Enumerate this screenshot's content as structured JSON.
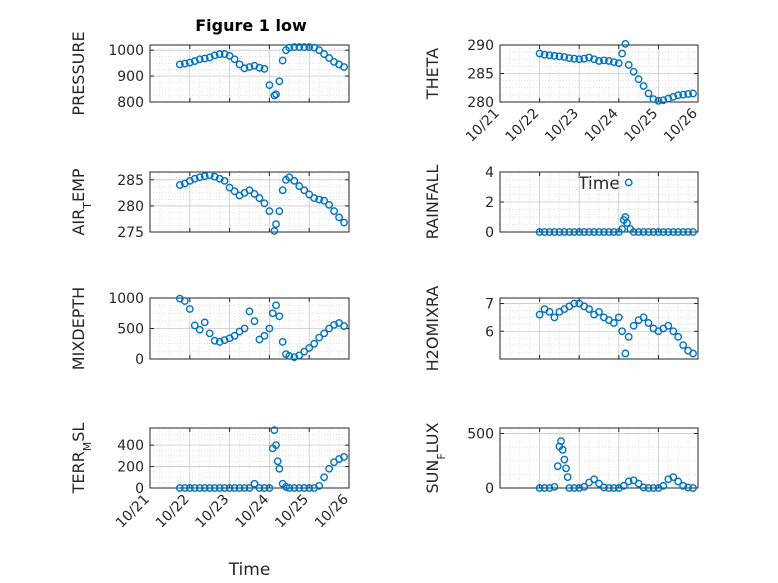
{
  "title": "Figure 1 low",
  "colors": {
    "marker": "#0072BD",
    "axis": "#262626",
    "grid": "#c8c8c8",
    "gridMinor": "#d8d8d8"
  },
  "chart_data": [
    {
      "type": "scatter",
      "ylabel": "PRESSURE",
      "ylim": [
        800,
        1020
      ],
      "yticks": [
        800,
        900,
        1000
      ],
      "ytick_labels": [
        "800",
        "900",
        "1000"
      ],
      "xlim": [
        "10/21",
        "10/26"
      ],
      "xticks": [
        "10/21",
        "10/22",
        "10/23",
        "10/24",
        "10/25",
        "10/26"
      ],
      "grid": "on",
      "x": [
        "10/21 18:00",
        "10/21 21:00",
        "10/22 00:00",
        "10/22 03:00",
        "10/22 06:00",
        "10/22 09:00",
        "10/22 12:00",
        "10/22 15:00",
        "10/22 18:00",
        "10/22 21:00",
        "10/23 00:00",
        "10/23 03:00",
        "10/23 06:00",
        "10/23 09:00",
        "10/23 12:00",
        "10/23 15:00",
        "10/23 18:00",
        "10/23 21:00",
        "10/24 00:00",
        "10/24 03:00",
        "10/24 04:00",
        "10/24 06:00",
        "10/24 08:00",
        "10/24 10:00",
        "10/24 12:00",
        "10/24 15:00",
        "10/24 18:00",
        "10/24 21:00",
        "10/25 00:00",
        "10/25 03:00",
        "10/25 06:00",
        "10/25 09:00",
        "10/25 12:00",
        "10/25 15:00",
        "10/25 18:00",
        "10/25 21:00"
      ],
      "y": [
        945,
        948,
        952,
        958,
        965,
        968,
        972,
        980,
        985,
        985,
        978,
        965,
        945,
        930,
        935,
        940,
        932,
        928,
        865,
        825,
        830,
        880,
        960,
        1000,
        1010,
        1012,
        1012,
        1012,
        1012,
        1010,
        1000,
        985,
        970,
        955,
        945,
        935
      ]
    },
    {
      "type": "scatter",
      "ylabel": "THETA",
      "ylim": [
        280,
        290
      ],
      "yticks": [
        280,
        285,
        290
      ],
      "ytick_labels": [
        "280",
        "285",
        "290"
      ],
      "xlim": [
        "10/21",
        "10/26"
      ],
      "xticks": [
        "10/21",
        "10/22",
        "10/23",
        "10/24",
        "10/25",
        "10/26"
      ],
      "xtick_labels": [
        "10/21",
        "10/22",
        "10/23",
        "10/24",
        "10/25",
        "10/26"
      ],
      "xlabel": "Time",
      "grid": "on",
      "x": [
        "10/22 00:00",
        "10/22 03:00",
        "10/22 06:00",
        "10/22 09:00",
        "10/22 12:00",
        "10/22 15:00",
        "10/22 18:00",
        "10/22 21:00",
        "10/23 00:00",
        "10/23 03:00",
        "10/23 06:00",
        "10/23 09:00",
        "10/23 12:00",
        "10/23 15:00",
        "10/23 18:00",
        "10/23 21:00",
        "10/24 00:00",
        "10/24 02:00",
        "10/24 04:00",
        "10/24 06:00",
        "10/24 09:00",
        "10/24 12:00",
        "10/24 15:00",
        "10/24 18:00",
        "10/24 21:00",
        "10/25 00:00",
        "10/25 03:00",
        "10/25 06:00",
        "10/25 09:00",
        "10/25 12:00",
        "10/25 15:00",
        "10/25 18:00",
        "10/25 21:00"
      ],
      "y": [
        288.5,
        288.3,
        288.2,
        288.1,
        288.0,
        287.9,
        287.7,
        287.6,
        287.5,
        287.6,
        287.8,
        287.5,
        287.2,
        287.3,
        287.2,
        287.0,
        286.8,
        288.5,
        290.2,
        286.5,
        285.3,
        284.0,
        282.8,
        281.5,
        280.5,
        280.2,
        280.3,
        280.6,
        280.9,
        281.2,
        281.3,
        281.4,
        281.5
      ]
    },
    {
      "type": "scatter",
      "ylabel": "AIR_TEMP",
      "ylabel_base": "AIR",
      "ylabel_sub": "T",
      "ylabel_rest": "EMP",
      "ylim": [
        275,
        286.5
      ],
      "yticks": [
        275,
        280,
        285
      ],
      "ytick_labels": [
        "275",
        "280",
        "285"
      ],
      "xlim": [
        "10/21",
        "10/26"
      ],
      "xticks": [
        "10/21",
        "10/22",
        "10/23",
        "10/24",
        "10/25",
        "10/26"
      ],
      "grid": "on",
      "x": [
        "10/21 18:00",
        "10/21 21:00",
        "10/22 00:00",
        "10/22 03:00",
        "10/22 06:00",
        "10/22 09:00",
        "10/22 12:00",
        "10/22 15:00",
        "10/22 18:00",
        "10/22 21:00",
        "10/23 00:00",
        "10/23 03:00",
        "10/23 06:00",
        "10/23 09:00",
        "10/23 12:00",
        "10/23 15:00",
        "10/23 18:00",
        "10/23 21:00",
        "10/24 00:00",
        "10/24 03:00",
        "10/24 04:00",
        "10/24 06:00",
        "10/24 08:00",
        "10/24 10:00",
        "10/24 12:00",
        "10/24 15:00",
        "10/24 18:00",
        "10/24 21:00",
        "10/25 00:00",
        "10/25 03:00",
        "10/25 06:00",
        "10/25 09:00",
        "10/25 12:00",
        "10/25 15:00",
        "10/25 18:00",
        "10/25 21:00"
      ],
      "y": [
        284.0,
        284.3,
        284.8,
        285.2,
        285.5,
        285.7,
        285.9,
        285.6,
        285.2,
        284.8,
        283.5,
        282.8,
        282.0,
        282.5,
        283.0,
        282.3,
        281.5,
        280.5,
        279.0,
        275.2,
        276.5,
        279.0,
        283.0,
        285.0,
        285.5,
        284.8,
        283.8,
        283.0,
        282.2,
        281.5,
        281.2,
        281.0,
        280.2,
        279.0,
        277.8,
        276.8
      ]
    },
    {
      "type": "scatter",
      "ylabel": "RAINFALL",
      "ylim": [
        0,
        4
      ],
      "yticks": [
        0,
        2,
        4
      ],
      "ytick_labels": [
        "0",
        "2",
        "4"
      ],
      "xlim": [
        "10/21",
        "10/26"
      ],
      "xticks": [
        "10/21",
        "10/22",
        "10/23",
        "10/24",
        "10/25",
        "10/26"
      ],
      "grid": "on",
      "x": [
        "10/22 00:00",
        "10/22 03:00",
        "10/22 06:00",
        "10/22 09:00",
        "10/22 12:00",
        "10/22 15:00",
        "10/22 18:00",
        "10/22 21:00",
        "10/23 00:00",
        "10/23 03:00",
        "10/23 06:00",
        "10/23 09:00",
        "10/23 12:00",
        "10/23 15:00",
        "10/23 18:00",
        "10/23 21:00",
        "10/24 00:00",
        "10/24 02:00",
        "10/24 03:00",
        "10/24 04:00",
        "10/24 05:00",
        "10/24 06:00",
        "10/24 07:00",
        "10/24 09:00",
        "10/24 12:00",
        "10/24 15:00",
        "10/24 18:00",
        "10/24 21:00",
        "10/25 00:00",
        "10/25 03:00",
        "10/25 06:00",
        "10/25 09:00",
        "10/25 12:00",
        "10/25 15:00",
        "10/25 18:00",
        "10/25 21:00"
      ],
      "y": [
        0,
        0,
        0,
        0,
        0,
        0,
        0,
        0,
        0,
        0,
        0,
        0,
        0,
        0,
        0,
        0,
        0,
        0.2,
        0.8,
        1.0,
        0.6,
        3.3,
        0.2,
        0,
        0,
        0,
        0,
        0,
        0,
        0,
        0,
        0,
        0,
        0,
        0,
        0
      ]
    },
    {
      "type": "scatter",
      "ylabel": "MIXDEPTH",
      "ylim": [
        0,
        1000
      ],
      "yticks": [
        0,
        500,
        1000
      ],
      "ytick_labels": [
        "0",
        "500",
        "1000"
      ],
      "xlim": [
        "10/21",
        "10/26"
      ],
      "xticks": [
        "10/21",
        "10/22",
        "10/23",
        "10/24",
        "10/25",
        "10/26"
      ],
      "grid": "on",
      "x": [
        "10/21 18:00",
        "10/21 21:00",
        "10/22 00:00",
        "10/22 03:00",
        "10/22 06:00",
        "10/22 09:00",
        "10/22 12:00",
        "10/22 15:00",
        "10/22 18:00",
        "10/22 21:00",
        "10/23 00:00",
        "10/23 03:00",
        "10/23 06:00",
        "10/23 09:00",
        "10/23 12:00",
        "10/23 15:00",
        "10/23 18:00",
        "10/23 21:00",
        "10/24 00:00",
        "10/24 02:00",
        "10/24 04:00",
        "10/24 06:00",
        "10/24 08:00",
        "10/24 10:00",
        "10/24 12:00",
        "10/24 15:00",
        "10/24 18:00",
        "10/24 21:00",
        "10/25 00:00",
        "10/25 03:00",
        "10/25 06:00",
        "10/25 09:00",
        "10/25 12:00",
        "10/25 15:00",
        "10/25 18:00",
        "10/25 21:00"
      ],
      "y": [
        990,
        950,
        820,
        550,
        480,
        600,
        420,
        300,
        280,
        310,
        340,
        380,
        450,
        500,
        780,
        620,
        320,
        380,
        500,
        750,
        880,
        700,
        280,
        80,
        50,
        30,
        60,
        120,
        180,
        250,
        350,
        420,
        500,
        560,
        590,
        540
      ]
    },
    {
      "type": "scatter",
      "ylabel": "H2OMIXRA",
      "ylim": [
        5,
        7.2
      ],
      "yticks": [
        6,
        7
      ],
      "ytick_labels": [
        "6",
        "7"
      ],
      "xlim": [
        "10/21",
        "10/26"
      ],
      "xticks": [
        "10/21",
        "10/22",
        "10/23",
        "10/24",
        "10/25",
        "10/26"
      ],
      "grid": "on",
      "x": [
        "10/22 00:00",
        "10/22 03:00",
        "10/22 06:00",
        "10/22 09:00",
        "10/22 12:00",
        "10/22 15:00",
        "10/22 18:00",
        "10/22 21:00",
        "10/23 00:00",
        "10/23 03:00",
        "10/23 06:00",
        "10/23 09:00",
        "10/23 12:00",
        "10/23 15:00",
        "10/23 18:00",
        "10/23 21:00",
        "10/24 00:00",
        "10/24 02:00",
        "10/24 04:00",
        "10/24 06:00",
        "10/24 09:00",
        "10/24 12:00",
        "10/24 15:00",
        "10/24 18:00",
        "10/24 21:00",
        "10/25 00:00",
        "10/25 03:00",
        "10/25 06:00",
        "10/25 09:00",
        "10/25 12:00",
        "10/25 15:00",
        "10/25 18:00",
        "10/25 21:00"
      ],
      "y": [
        6.6,
        6.8,
        6.7,
        6.5,
        6.7,
        6.8,
        6.9,
        7.0,
        7.0,
        6.9,
        6.8,
        6.6,
        6.7,
        6.5,
        6.4,
        6.3,
        6.5,
        6.0,
        5.2,
        5.8,
        6.2,
        6.4,
        6.5,
        6.3,
        6.1,
        6.0,
        6.1,
        6.2,
        6.0,
        5.8,
        5.5,
        5.3,
        5.2
      ]
    },
    {
      "type": "scatter",
      "ylabel": "TERR_MSL",
      "ylabel_base": "TERR",
      "ylabel_sub": "M",
      "ylabel_rest": "SL",
      "ylim": [
        0,
        560
      ],
      "yticks": [
        0,
        200,
        400
      ],
      "ytick_labels": [
        "0",
        "200",
        "400"
      ],
      "xlim": [
        "10/21",
        "10/26"
      ],
      "xticks": [
        "10/21",
        "10/22",
        "10/23",
        "10/24",
        "10/25",
        "10/26"
      ],
      "xtick_labels": [
        "10/21",
        "10/22",
        "10/23",
        "10/24",
        "10/25",
        "10/26"
      ],
      "xlabel": "Time",
      "grid": "on",
      "x": [
        "10/21 18:00",
        "10/21 21:00",
        "10/22 00:00",
        "10/22 03:00",
        "10/22 06:00",
        "10/22 09:00",
        "10/22 12:00",
        "10/22 15:00",
        "10/22 18:00",
        "10/22 21:00",
        "10/23 00:00",
        "10/23 03:00",
        "10/23 06:00",
        "10/23 09:00",
        "10/23 12:00",
        "10/23 15:00",
        "10/23 18:00",
        "10/23 21:00",
        "10/24 00:00",
        "10/24 02:00",
        "10/24 03:00",
        "10/24 04:00",
        "10/24 05:00",
        "10/24 06:00",
        "10/24 08:00",
        "10/24 10:00",
        "10/24 12:00",
        "10/24 15:00",
        "10/24 18:00",
        "10/24 21:00",
        "10/25 00:00",
        "10/25 03:00",
        "10/25 06:00",
        "10/25 09:00",
        "10/25 12:00",
        "10/25 15:00",
        "10/25 18:00",
        "10/25 21:00"
      ],
      "y": [
        0,
        0,
        0,
        0,
        0,
        0,
        0,
        0,
        0,
        0,
        0,
        0,
        0,
        0,
        0,
        40,
        0,
        0,
        0,
        370,
        540,
        400,
        250,
        180,
        40,
        10,
        0,
        0,
        0,
        0,
        0,
        0,
        20,
        100,
        180,
        240,
        270,
        290
      ]
    },
    {
      "type": "scatter",
      "ylabel": "SUN_FLUX",
      "ylabel_base": "SUN",
      "ylabel_sub": "F",
      "ylabel_rest": "LUX",
      "ylim": [
        0,
        550
      ],
      "yticks": [
        0,
        500
      ],
      "ytick_labels": [
        "0",
        "500"
      ],
      "xlim": [
        "10/21",
        "10/26"
      ],
      "xticks": [
        "10/21",
        "10/22",
        "10/23",
        "10/24",
        "10/25",
        "10/26"
      ],
      "grid": "on",
      "x": [
        "10/22 00:00",
        "10/22 03:00",
        "10/22 06:00",
        "10/22 09:00",
        "10/22 11:00",
        "10/22 12:00",
        "10/22 13:00",
        "10/22 14:00",
        "10/22 15:00",
        "10/22 16:00",
        "10/22 17:00",
        "10/22 18:00",
        "10/22 21:00",
        "10/23 00:00",
        "10/23 03:00",
        "10/23 06:00",
        "10/23 09:00",
        "10/23 12:00",
        "10/23 15:00",
        "10/23 18:00",
        "10/23 21:00",
        "10/24 00:00",
        "10/24 03:00",
        "10/24 06:00",
        "10/24 09:00",
        "10/24 12:00",
        "10/24 15:00",
        "10/24 18:00",
        "10/24 21:00",
        "10/25 00:00",
        "10/25 03:00",
        "10/25 06:00",
        "10/25 09:00",
        "10/25 12:00",
        "10/25 15:00",
        "10/25 18:00",
        "10/25 21:00"
      ],
      "y": [
        0,
        0,
        0,
        10,
        200,
        380,
        430,
        350,
        260,
        180,
        100,
        0,
        0,
        0,
        10,
        50,
        80,
        40,
        5,
        0,
        0,
        0,
        20,
        60,
        70,
        40,
        5,
        0,
        0,
        0,
        20,
        80,
        100,
        60,
        20,
        5,
        0
      ]
    }
  ]
}
